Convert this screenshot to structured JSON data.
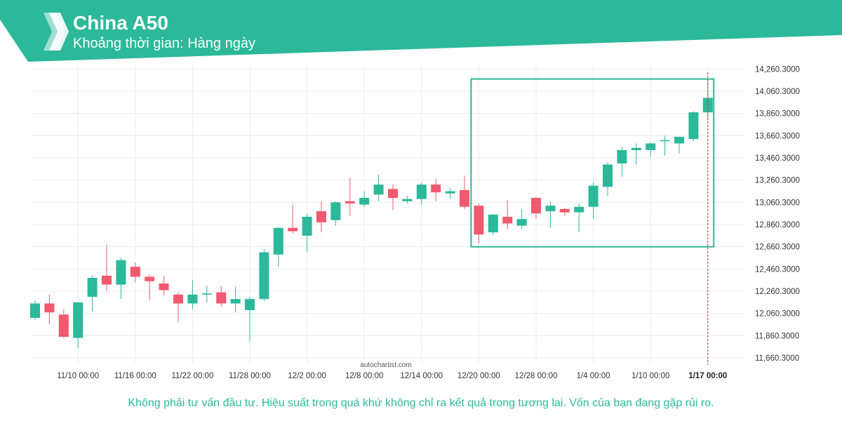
{
  "header": {
    "title": "China A50",
    "subtitle": "Khoảng thời gian: Hàng ngày",
    "brand_color": "#2bb99a",
    "logo_icon": "autochartist-logo-icon"
  },
  "watermark": "autochartist.com",
  "disclaimer": "Không phải tư vấn đầu tư. Hiệu suất trong quá khứ không chỉ ra kết quả trong tương lai. Vốn của bạn đang gặp rủi ro.",
  "colors": {
    "up": "#2bb99a",
    "down": "#f0596f",
    "grid": "#ececec",
    "pattern_box": "#2bb99a",
    "axis_text": "#333333"
  },
  "chart_data": {
    "type": "candlestick",
    "y_ticks": [
      "14,260.3000",
      "14,060.3000",
      "13,860.3000",
      "13,660.3000",
      "13,460.3000",
      "13,260.3000",
      "13,060.3000",
      "12,860.3000",
      "12,660.3000",
      "12,460.3000",
      "12,260.3000",
      "12,060.3000",
      "11,860.3000",
      "11,660.3000"
    ],
    "x_ticks": [
      {
        "label": "11/10 00:00",
        "index": 3
      },
      {
        "label": "11/16 00:00",
        "index": 7
      },
      {
        "label": "11/22 00:00",
        "index": 11
      },
      {
        "label": "11/28 00:00",
        "index": 15
      },
      {
        "label": "12/2 00:00",
        "index": 19
      },
      {
        "label": "12/8 00:00",
        "index": 23
      },
      {
        "label": "12/14 00:00",
        "index": 27
      },
      {
        "label": "12/20 00:00",
        "index": 31
      },
      {
        "label": "12/28 00:00",
        "index": 35
      },
      {
        "label": "1/4 00:00",
        "index": 39
      },
      {
        "label": "1/10 00:00",
        "index": 43
      },
      {
        "label": "1/17 00:00",
        "index": 47
      }
    ],
    "ylim": [
      11610,
      14300
    ],
    "candles": [
      {
        "o": 12020,
        "h": 12180,
        "l": 12000,
        "c": 12150
      },
      {
        "o": 12150,
        "h": 12230,
        "l": 11960,
        "c": 12070
      },
      {
        "o": 12050,
        "h": 12100,
        "l": 11840,
        "c": 11850
      },
      {
        "o": 11840,
        "h": 12160,
        "l": 11750,
        "c": 12160
      },
      {
        "o": 12210,
        "h": 12400,
        "l": 12080,
        "c": 12380
      },
      {
        "o": 12400,
        "h": 12680,
        "l": 12260,
        "c": 12320
      },
      {
        "o": 12320,
        "h": 12560,
        "l": 12190,
        "c": 12540
      },
      {
        "o": 12480,
        "h": 12520,
        "l": 12340,
        "c": 12390
      },
      {
        "o": 12390,
        "h": 12410,
        "l": 12180,
        "c": 12350
      },
      {
        "o": 12330,
        "h": 12400,
        "l": 12220,
        "c": 12270
      },
      {
        "o": 12230,
        "h": 12250,
        "l": 11980,
        "c": 12150
      },
      {
        "o": 12150,
        "h": 12360,
        "l": 12100,
        "c": 12230
      },
      {
        "o": 12230,
        "h": 12310,
        "l": 12160,
        "c": 12240
      },
      {
        "o": 12250,
        "h": 12310,
        "l": 12120,
        "c": 12150
      },
      {
        "o": 12150,
        "h": 12300,
        "l": 12070,
        "c": 12190
      },
      {
        "o": 12090,
        "h": 12210,
        "l": 11810,
        "c": 12190
      },
      {
        "o": 12190,
        "h": 12640,
        "l": 12170,
        "c": 12610
      },
      {
        "o": 12590,
        "h": 12840,
        "l": 12480,
        "c": 12830
      },
      {
        "o": 12830,
        "h": 13040,
        "l": 12780,
        "c": 12800
      },
      {
        "o": 12760,
        "h": 12960,
        "l": 12610,
        "c": 12930
      },
      {
        "o": 12980,
        "h": 13070,
        "l": 12790,
        "c": 12880
      },
      {
        "o": 12900,
        "h": 13070,
        "l": 12850,
        "c": 13060
      },
      {
        "o": 13070,
        "h": 13280,
        "l": 12940,
        "c": 13050
      },
      {
        "o": 13040,
        "h": 13160,
        "l": 13020,
        "c": 13100
      },
      {
        "o": 13130,
        "h": 13310,
        "l": 13070,
        "c": 13220
      },
      {
        "o": 13180,
        "h": 13220,
        "l": 12990,
        "c": 13100
      },
      {
        "o": 13070,
        "h": 13120,
        "l": 13050,
        "c": 13090
      },
      {
        "o": 13090,
        "h": 13240,
        "l": 13040,
        "c": 13220
      },
      {
        "o": 13220,
        "h": 13270,
        "l": 13070,
        "c": 13150
      },
      {
        "o": 13140,
        "h": 13190,
        "l": 13090,
        "c": 13160
      },
      {
        "o": 13170,
        "h": 13300,
        "l": 13000,
        "c": 13020
      },
      {
        "o": 13030,
        "h": 13050,
        "l": 12690,
        "c": 12770
      },
      {
        "o": 12790,
        "h": 12950,
        "l": 12770,
        "c": 12950
      },
      {
        "o": 12930,
        "h": 13080,
        "l": 12820,
        "c": 12870
      },
      {
        "o": 12850,
        "h": 13000,
        "l": 12820,
        "c": 12910
      },
      {
        "o": 13100,
        "h": 13110,
        "l": 12910,
        "c": 12960
      },
      {
        "o": 12980,
        "h": 13070,
        "l": 12830,
        "c": 13030
      },
      {
        "o": 13000,
        "h": 13010,
        "l": 12940,
        "c": 12970
      },
      {
        "o": 12970,
        "h": 13050,
        "l": 12790,
        "c": 13020
      },
      {
        "o": 13020,
        "h": 13240,
        "l": 12910,
        "c": 13210
      },
      {
        "o": 13200,
        "h": 13420,
        "l": 13120,
        "c": 13400
      },
      {
        "o": 13410,
        "h": 13560,
        "l": 13290,
        "c": 13530
      },
      {
        "o": 13530,
        "h": 13590,
        "l": 13400,
        "c": 13550
      },
      {
        "o": 13530,
        "h": 13600,
        "l": 13470,
        "c": 13590
      },
      {
        "o": 13610,
        "h": 13660,
        "l": 13480,
        "c": 13620
      },
      {
        "o": 13590,
        "h": 13630,
        "l": 13500,
        "c": 13650
      },
      {
        "o": 13630,
        "h": 13880,
        "l": 13610,
        "c": 13870
      },
      {
        "o": 13870,
        "h": 14160,
        "l": 13810,
        "c": 14000
      }
    ],
    "pattern_box": {
      "start_index": 31,
      "end_index": 48,
      "top": 14170,
      "bottom": 12660
    },
    "current_marker_index": 47
  }
}
